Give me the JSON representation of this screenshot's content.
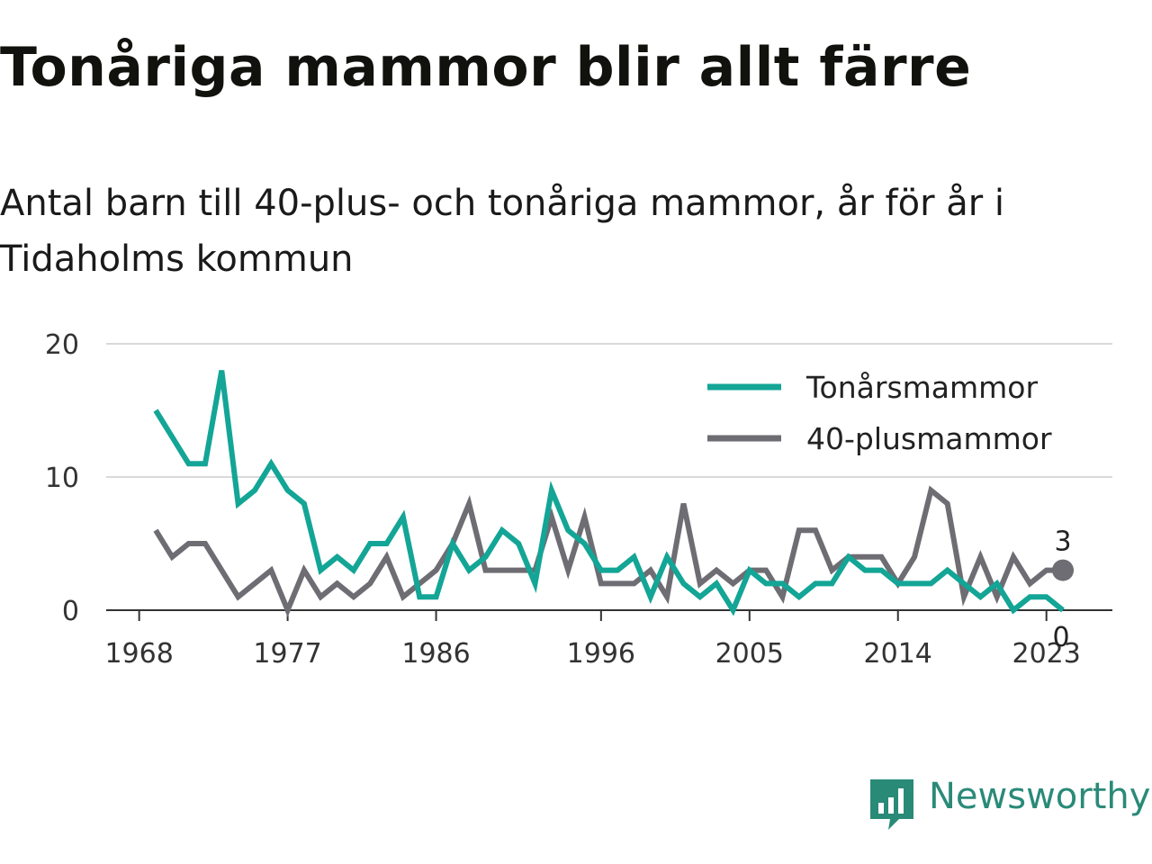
{
  "title": "Tonåriga mammor blir allt färre",
  "subtitle": "Antal barn till 40-plus- och tonåriga mammor, år för år i Tidaholms kommun",
  "brand": {
    "name": "Newsworthy",
    "color": "#2a8a78",
    "icon": "newsworthy-logo-icon"
  },
  "chart_data": {
    "type": "line",
    "title": "Tonåriga mammor blir allt färre",
    "subtitle": "Antal barn till 40-plus- och tonåriga mammor, år för år i Tidaholms kommun",
    "xlabel": "",
    "ylabel": "",
    "ylim": [
      0,
      20
    ],
    "xlim": [
      1966,
      2027
    ],
    "yticks": [
      0,
      10,
      20
    ],
    "xticks": [
      1968,
      1977,
      1986,
      1996,
      2005,
      2014,
      2023
    ],
    "grid": true,
    "legend_position": "top-right",
    "x": [
      1969,
      1970,
      1971,
      1972,
      1973,
      1974,
      1975,
      1976,
      1977,
      1978,
      1979,
      1980,
      1981,
      1982,
      1983,
      1984,
      1985,
      1986,
      1987,
      1988,
      1989,
      1990,
      1991,
      1992,
      1993,
      1994,
      1995,
      1996,
      1997,
      1998,
      1999,
      2000,
      2001,
      2002,
      2003,
      2004,
      2005,
      2006,
      2007,
      2008,
      2009,
      2010,
      2011,
      2012,
      2013,
      2014,
      2015,
      2016,
      2017,
      2018,
      2019,
      2020,
      2021,
      2022,
      2023,
      2024
    ],
    "series": [
      {
        "name": "Tonårsmammor",
        "color": "#13a596",
        "values": [
          15,
          13,
          11,
          11,
          18,
          8,
          9,
          11,
          9,
          8,
          3,
          4,
          3,
          5,
          5,
          7,
          1,
          1,
          5,
          3,
          4,
          6,
          5,
          2,
          9,
          6,
          5,
          3,
          3,
          4,
          1,
          4,
          2,
          1,
          2,
          0,
          3,
          2,
          2,
          1,
          2,
          2,
          4,
          3,
          3,
          2,
          2,
          2,
          3,
          2,
          1,
          2,
          0,
          1,
          1,
          0
        ],
        "end_label": "0"
      },
      {
        "name": "40-plusmammor",
        "color": "#6d6d73",
        "values": [
          6,
          4,
          5,
          5,
          3,
          1,
          2,
          3,
          0,
          3,
          1,
          2,
          1,
          2,
          4,
          1,
          2,
          3,
          5,
          8,
          3,
          3,
          3,
          3,
          7,
          3,
          7,
          2,
          2,
          2,
          3,
          1,
          8,
          2,
          3,
          2,
          3,
          3,
          1,
          6,
          6,
          3,
          4,
          4,
          4,
          2,
          4,
          9,
          8,
          1,
          4,
          1,
          4,
          2,
          3,
          3
        ],
        "end_label": "3"
      }
    ]
  }
}
